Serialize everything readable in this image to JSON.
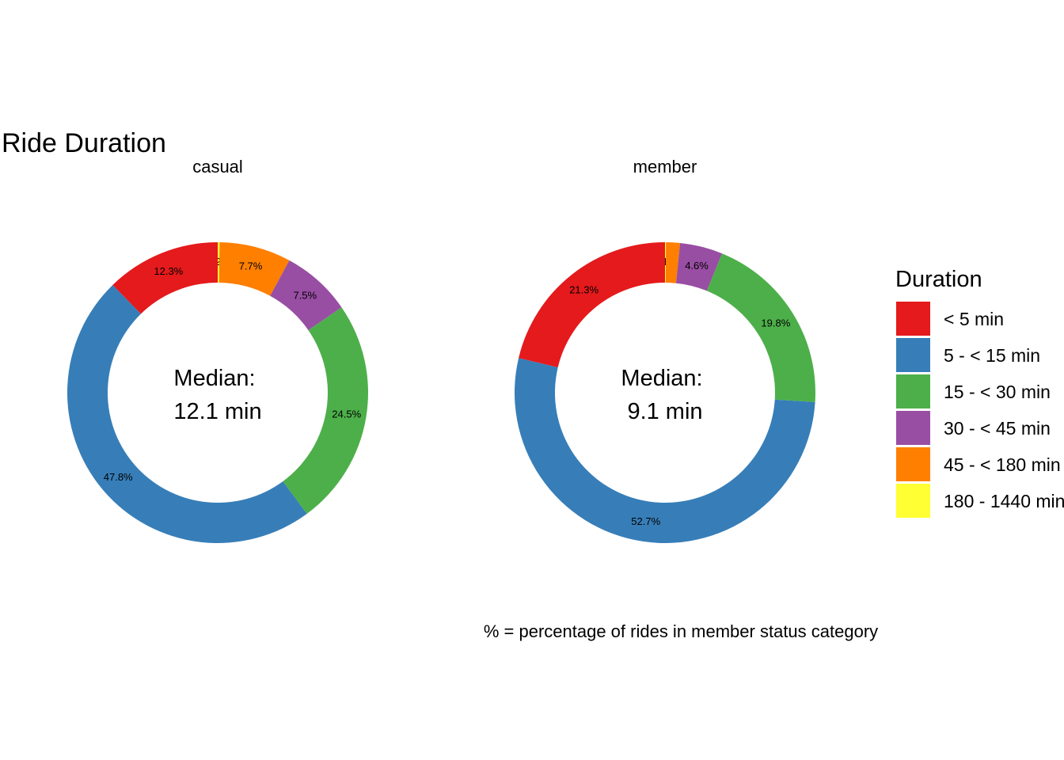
{
  "chart_data": {
    "type": "pie",
    "title": "Ride Duration",
    "caption": "% = percentage of rides in member status category",
    "legend": {
      "title": "Duration",
      "position": "right",
      "entries": [
        {
          "label": "< 5 min",
          "color": "#E41A1C"
        },
        {
          "label": "5 - < 15 min",
          "color": "#377EB8"
        },
        {
          "label": "15 - < 30 min",
          "color": "#4DAF4A"
        },
        {
          "label": "30 - < 45 min",
          "color": "#984EA3"
        },
        {
          "label": "45 - < 180 min",
          "color": "#FF7F00"
        },
        {
          "label": "180 - 1440 min",
          "color": "#FFFF33"
        }
      ]
    },
    "categories": [
      "< 5 min",
      "5 - < 15 min",
      "15 - < 30 min",
      "30 - < 45 min",
      "45 - < 180 min",
      "180 - 1440 min"
    ],
    "panels": [
      {
        "facet": "casual",
        "center_line1": "Median:",
        "center_line2": "12.1 min",
        "values": [
          12.3,
          47.8,
          24.5,
          7.5,
          7.7,
          0.2
        ],
        "labels": [
          "12.3%",
          "47.8%",
          "24.5%",
          "7.5%",
          "7.7%",
          "0.2%"
        ]
      },
      {
        "facet": "member",
        "center_line1": "Median:",
        "center_line2": "9.1 min",
        "values": [
          21.3,
          52.7,
          19.8,
          4.6,
          1.5,
          0.1
        ],
        "labels": [
          "21.3%",
          "52.7%",
          "19.8%",
          "4.6%",
          "",
          "0.1%"
        ]
      }
    ]
  }
}
